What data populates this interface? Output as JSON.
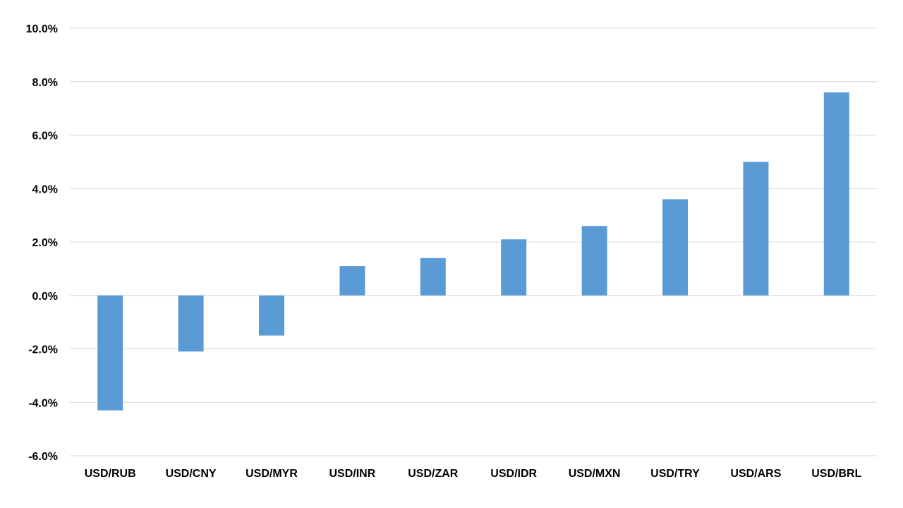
{
  "chart_data": {
    "type": "bar",
    "title": "",
    "xlabel": "",
    "ylabel": "",
    "categories": [
      "USD/RUB",
      "USD/CNY",
      "USD/MYR",
      "USD/INR",
      "USD/ZAR",
      "USD/IDR",
      "USD/MXN",
      "USD/TRY",
      "USD/ARS",
      "USD/BRL"
    ],
    "values": [
      -4.3,
      -2.1,
      -1.5,
      1.1,
      1.4,
      2.1,
      2.6,
      3.6,
      5.0,
      7.6
    ],
    "ylim": [
      -6.0,
      10.0
    ],
    "yticks": [
      10.0,
      8.0,
      6.0,
      4.0,
      2.0,
      0.0,
      -2.0,
      -4.0,
      -6.0
    ],
    "ytick_labels": [
      "10.0%",
      "8.0%",
      "6.0%",
      "4.0%",
      "2.0%",
      "0.0%",
      "-2.0%",
      "-4.0%",
      "-6.0%"
    ],
    "grid": true,
    "legend": "none",
    "bar_color": "#5b9bd5",
    "grid_color": "#d9d9d9"
  }
}
